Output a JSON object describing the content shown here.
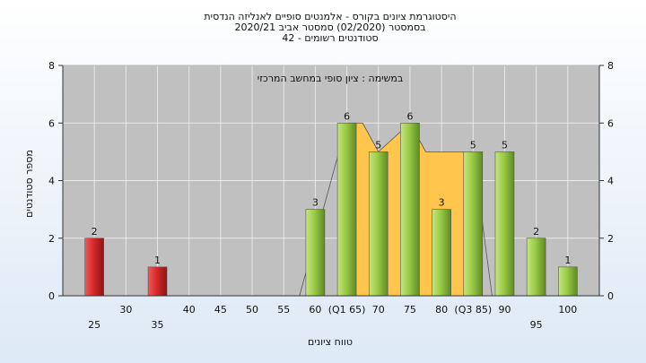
{
  "chart_data": {
    "type": "bar",
    "title_lines": [
      "היסטוגרמת ציונים בקורס - אלמנטים סופיים לאנליזה הנדסית",
      "בסמסטר  (02/2020)  סמסטר אביב 2020/21",
      "42 - סטודנטים רשומים"
    ],
    "annotation": "במשימה : ציון סופי במחשב המרכזי",
    "xlabel": "טווח ציונים",
    "ylabel": "מספר סטודנטים",
    "ylim": [
      0,
      8
    ],
    "yticks": [
      "0",
      "2",
      "4",
      "6",
      "8"
    ],
    "xlim": [
      20,
      105
    ],
    "xticks_row1": [
      {
        "x": 30,
        "label": "30"
      },
      {
        "x": 40,
        "label": "40"
      },
      {
        "x": 45,
        "label": "45"
      },
      {
        "x": 50,
        "label": "50"
      },
      {
        "x": 55,
        "label": "55"
      },
      {
        "x": 60,
        "label": "60"
      },
      {
        "x": 65,
        "label": "(Q1 65)"
      },
      {
        "x": 70,
        "label": "70"
      },
      {
        "x": 75,
        "label": "75"
      },
      {
        "x": 80,
        "label": "80"
      },
      {
        "x": 85,
        "label": "(Q3 85)"
      },
      {
        "x": 90,
        "label": "90"
      },
      {
        "x": 100,
        "label": "100"
      }
    ],
    "xticks_row2": [
      {
        "x": 25,
        "label": "25"
      },
      {
        "x": 35,
        "label": "35"
      },
      {
        "x": 95,
        "label": "95"
      }
    ],
    "bars": [
      {
        "x": 25,
        "value": 2,
        "label": "2",
        "color": "red"
      },
      {
        "x": 35,
        "value": 1,
        "label": "1",
        "color": "red"
      },
      {
        "x": 60,
        "value": 3,
        "label": "3",
        "color": "green"
      },
      {
        "x": 65,
        "value": 6,
        "label": "6",
        "color": "green"
      },
      {
        "x": 70,
        "value": 5,
        "label": "5",
        "color": "green"
      },
      {
        "x": 75,
        "value": 6,
        "label": "6",
        "color": "green"
      },
      {
        "x": 80,
        "value": 3,
        "label": "3",
        "color": "green"
      },
      {
        "x": 85,
        "value": 5,
        "label": "5",
        "color": "green"
      },
      {
        "x": 90,
        "value": 5,
        "label": "5",
        "color": "green"
      },
      {
        "x": 95,
        "value": 2,
        "label": "2",
        "color": "green"
      },
      {
        "x": 100,
        "value": 1,
        "label": "1",
        "color": "green"
      }
    ],
    "distribution_area": [
      [
        65,
        6
      ],
      [
        67.5,
        6
      ],
      [
        70,
        5
      ],
      [
        75,
        6
      ],
      [
        77.5,
        5
      ],
      [
        85,
        5
      ]
    ],
    "distribution_line": [
      [
        57.5,
        0
      ],
      [
        65,
        6
      ],
      [
        67.5,
        6
      ],
      [
        70,
        5
      ],
      [
        75,
        6
      ],
      [
        77.5,
        5
      ],
      [
        85,
        5
      ],
      [
        88,
        0
      ]
    ],
    "grid": true,
    "colors": {
      "plot_bg": "#c0c0c0",
      "grid": "#e8e8e8",
      "red_bar": "#d62a2a",
      "green_bar": "#9acb47",
      "distribution": "#ffc54d"
    }
  }
}
